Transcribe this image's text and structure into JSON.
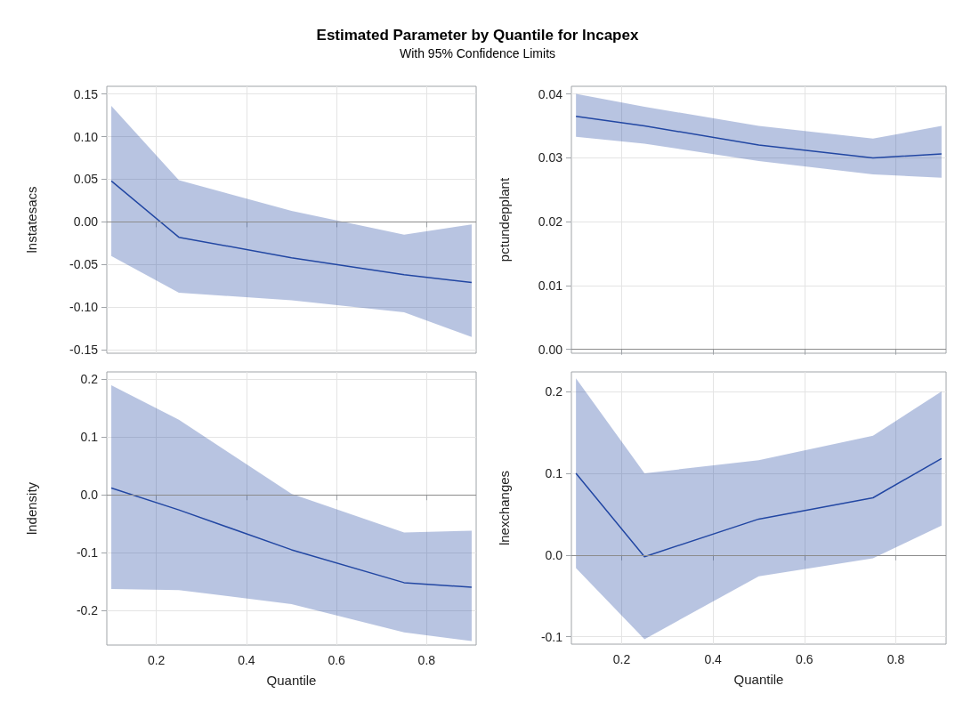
{
  "chart_data": [
    {
      "type": "line",
      "title": "Estimated Parameter by Quantile for lncapex",
      "subtitle": "With 95% Confidence Limits",
      "ylabel": "lnstatesacs",
      "x": [
        0.1,
        0.25,
        0.5,
        0.75,
        0.9
      ],
      "xlim": [
        0.09,
        0.91
      ],
      "xticks": [
        0.2,
        0.4,
        0.6,
        0.8
      ],
      "ylim": [
        -0.154,
        0.159
      ],
      "yticks": [
        {
          "value": -0.15,
          "label": "-0.15"
        },
        {
          "value": -0.1,
          "label": "-0.10"
        },
        {
          "value": -0.05,
          "label": "-0.05"
        },
        {
          "value": 0,
          "label": "0.00"
        },
        {
          "value": 0.05,
          "label": "0.05"
        },
        {
          "value": 0.1,
          "label": "0.10"
        },
        {
          "value": 0.15,
          "label": "0.15"
        }
      ],
      "tick_labels": "y",
      "grid": true,
      "marker": "none",
      "line_style": "solid",
      "ref_lines": [
        {
          "axis": "y",
          "value": 0,
          "color": "#8c8c8c"
        }
      ],
      "series": [
        {
          "color": "#2247a3",
          "values": [
            0.048,
            -0.018,
            -0.042,
            -0.062,
            -0.071
          ],
          "lower": [
            -0.04,
            -0.083,
            -0.092,
            -0.106,
            -0.135
          ],
          "upper": [
            0.136,
            0.049,
            0.013,
            -0.015,
            -0.003
          ]
        }
      ]
    },
    {
      "type": "line",
      "ylabel": "pctundepplant",
      "x": [
        0.1,
        0.25,
        0.5,
        0.75,
        0.9
      ],
      "xlim": [
        0.09,
        0.91
      ],
      "xticks": [
        0.2,
        0.4,
        0.6,
        0.8
      ],
      "ylim": [
        -0.0006,
        0.0412
      ],
      "yticks": [
        {
          "value": 0,
          "label": "0.00"
        },
        0.01,
        0.02,
        0.03,
        0.04
      ],
      "tick_labels": "y",
      "grid": true,
      "marker": "none",
      "line_style": "solid",
      "ref_lines": [
        {
          "axis": "y",
          "value": 0,
          "color": "#8c8c8c"
        }
      ],
      "series": [
        {
          "color": "#2247a3",
          "values": [
            0.0365,
            0.035,
            0.032,
            0.03,
            0.0306
          ],
          "lower": [
            0.0333,
            0.0322,
            0.0295,
            0.0274,
            0.0269
          ],
          "upper": [
            0.04,
            0.038,
            0.035,
            0.033,
            0.035
          ]
        }
      ]
    },
    {
      "type": "line",
      "xlabel": "Quantile",
      "ylabel": "lndensity",
      "x": [
        0.1,
        0.25,
        0.5,
        0.75,
        0.9
      ],
      "xlim": [
        0.09,
        0.91
      ],
      "xticks": [
        0.2,
        0.4,
        0.6,
        0.8
      ],
      "ylim": [
        -0.26,
        0.213
      ],
      "yticks": [
        -0.2,
        -0.1,
        {
          "value": 0,
          "label": "0.0"
        },
        0.1,
        0.2
      ],
      "grid": true,
      "marker": "none",
      "line_style": "solid",
      "ref_lines": [
        {
          "axis": "y",
          "value": 0,
          "color": "#8c8c8c"
        }
      ],
      "series": [
        {
          "color": "#2247a3",
          "values": [
            0.012,
            -0.026,
            -0.095,
            -0.152,
            -0.16
          ],
          "lower": [
            -0.163,
            -0.165,
            -0.189,
            -0.238,
            -0.253
          ],
          "upper": [
            0.19,
            0.13,
            0.002,
            -0.065,
            -0.062
          ]
        }
      ]
    },
    {
      "type": "line",
      "xlabel": "Quantile",
      "ylabel": "lnexchanges",
      "x": [
        0.1,
        0.25,
        0.5,
        0.75,
        0.9
      ],
      "xlim": [
        0.09,
        0.91
      ],
      "xticks": [
        0.2,
        0.4,
        0.6,
        0.8
      ],
      "ylim": [
        -0.109,
        0.224
      ],
      "yticks": [
        -0.1,
        {
          "value": 0,
          "label": "0.0"
        },
        0.1,
        0.2
      ],
      "grid": true,
      "marker": "none",
      "line_style": "solid",
      "ref_lines": [
        {
          "axis": "y",
          "value": 0,
          "color": "#8c8c8c"
        }
      ],
      "series": [
        {
          "color": "#2247a3",
          "values": [
            0.1,
            -0.002,
            0.044,
            0.07,
            0.118
          ],
          "lower": [
            -0.016,
            -0.103,
            -0.026,
            -0.004,
            0.036
          ],
          "upper": [
            0.216,
            0.1,
            0.116,
            0.146,
            0.2
          ]
        }
      ]
    }
  ]
}
